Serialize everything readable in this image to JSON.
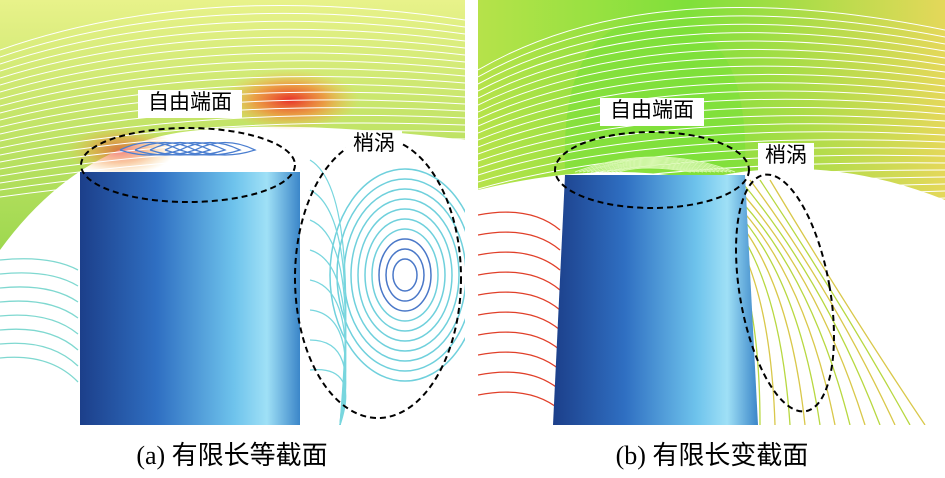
{
  "panels": [
    {
      "labels": [
        "自由端面",
        "梢涡"
      ],
      "caption": "(a) 有限长等截面"
    },
    {
      "labels": [
        "自由端面",
        "梢涡"
      ],
      "caption": "(b) 有限长变截面"
    }
  ]
}
